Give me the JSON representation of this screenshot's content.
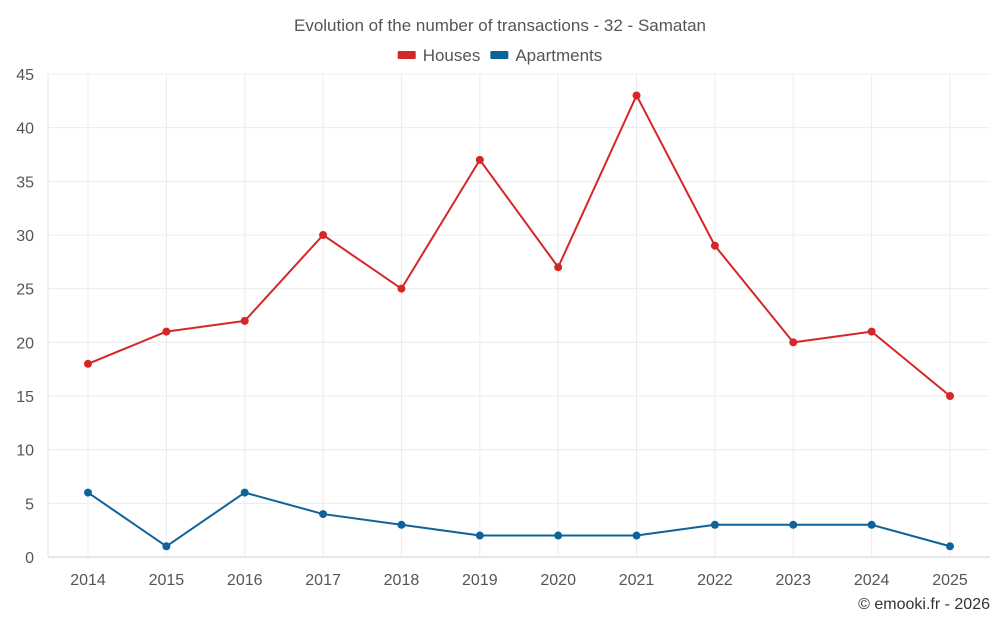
{
  "chart_data": {
    "type": "line",
    "title": "Evolution of the number of transactions - 32 - Samatan",
    "categories": [
      "2014",
      "2015",
      "2016",
      "2017",
      "2018",
      "2019",
      "2020",
      "2021",
      "2022",
      "2023",
      "2024",
      "2025"
    ],
    "series": [
      {
        "name": "Houses",
        "color": "#d62728",
        "values": [
          18,
          21,
          22,
          30,
          25,
          37,
          27,
          43,
          29,
          20,
          21,
          15
        ]
      },
      {
        "name": "Apartments",
        "color": "#0f6399",
        "values": [
          6,
          1,
          6,
          4,
          3,
          2,
          2,
          2,
          3,
          3,
          3,
          1
        ]
      }
    ],
    "ylim": [
      0,
      45
    ],
    "yticks": [
      0,
      5,
      10,
      15,
      20,
      25,
      30,
      35,
      40,
      45
    ],
    "xlabel": "",
    "ylabel": "",
    "grid": true,
    "legend_position": "top-center",
    "credit": "© emooki.fr - 2026"
  }
}
